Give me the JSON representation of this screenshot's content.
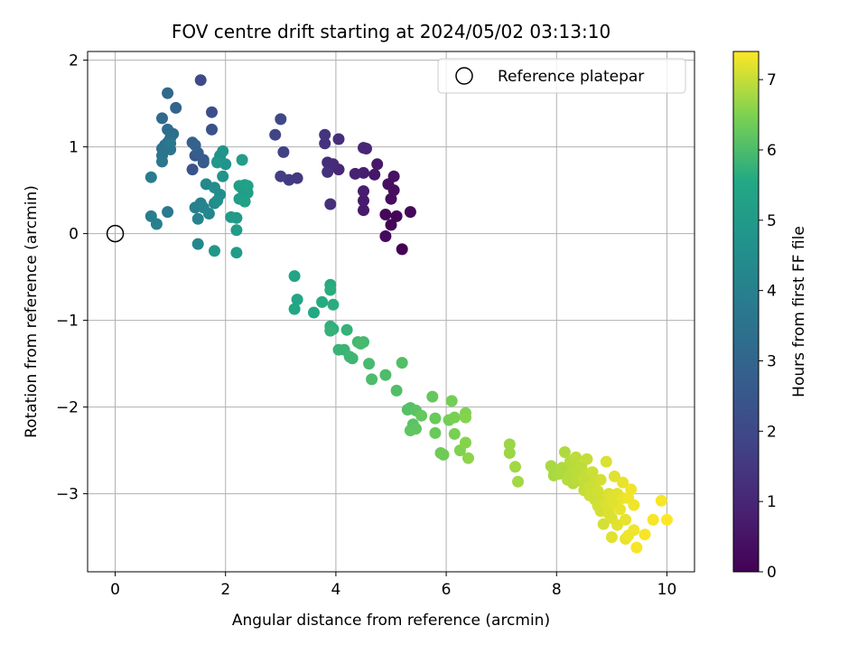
{
  "chart_data": {
    "type": "scatter",
    "title": "FOV centre drift starting at 2024/05/02 03:13:10",
    "xlabel": "Angular distance from reference (arcmin)",
    "ylabel": "Rotation from reference (arcmin)",
    "xlim": [
      -0.5,
      10.5
    ],
    "ylim": [
      -3.9,
      2.1
    ],
    "xticks": [
      0,
      2,
      4,
      6,
      8,
      10
    ],
    "yticks": [
      -3,
      -2,
      -1,
      0,
      1,
      2
    ],
    "grid": true,
    "legend": {
      "placement": "top-right",
      "entries": [
        {
          "label": "Reference platepar",
          "marker": "open-circle"
        }
      ]
    },
    "reference_point": {
      "x": 0,
      "y": 0
    },
    "colorbar": {
      "label": "Hours from first FF file",
      "colormap": "viridis",
      "range": [
        0,
        7.4
      ],
      "ticks": [
        0,
        1,
        2,
        3,
        4,
        5,
        6,
        7
      ]
    },
    "points": [
      [
        5.2,
        -0.18,
        0.0
      ],
      [
        5.0,
        0.1,
        0.05
      ],
      [
        5.1,
        0.2,
        0.1
      ],
      [
        4.9,
        0.22,
        0.15
      ],
      [
        5.35,
        0.25,
        0.2
      ],
      [
        4.9,
        -0.03,
        0.25
      ],
      [
        5.0,
        0.4,
        0.3
      ],
      [
        5.05,
        0.5,
        0.35
      ],
      [
        4.95,
        0.57,
        0.4
      ],
      [
        5.05,
        0.66,
        0.45
      ],
      [
        4.7,
        0.68,
        0.55
      ],
      [
        4.75,
        0.8,
        0.6
      ],
      [
        4.5,
        0.27,
        0.65
      ],
      [
        4.5,
        0.38,
        0.7
      ],
      [
        4.5,
        0.49,
        0.75
      ],
      [
        4.5,
        0.7,
        0.8
      ],
      [
        4.35,
        0.69,
        0.9
      ],
      [
        4.55,
        0.98,
        0.95
      ],
      [
        4.5,
        0.99,
        1.0
      ],
      [
        4.05,
        0.74,
        1.05
      ],
      [
        3.95,
        0.8,
        1.1
      ],
      [
        3.85,
        0.82,
        1.15
      ],
      [
        4.05,
        1.09,
        1.2
      ],
      [
        3.9,
        0.34,
        1.25
      ],
      [
        3.85,
        0.71,
        1.3
      ],
      [
        3.8,
        1.04,
        1.35
      ],
      [
        3.8,
        1.14,
        1.4
      ],
      [
        3.3,
        0.64,
        1.5
      ],
      [
        3.15,
        0.62,
        1.6
      ],
      [
        3.0,
        0.66,
        1.7
      ],
      [
        3.05,
        0.94,
        1.8
      ],
      [
        2.9,
        1.14,
        1.9
      ],
      [
        3.0,
        1.32,
        2.0
      ],
      [
        1.55,
        1.77,
        2.1
      ],
      [
        1.75,
        1.4,
        2.2
      ],
      [
        1.75,
        1.2,
        2.3
      ],
      [
        1.4,
        0.74,
        2.4
      ],
      [
        1.45,
        0.9,
        2.5
      ],
      [
        1.6,
        0.82,
        2.6
      ],
      [
        1.6,
        0.85,
        2.7
      ],
      [
        1.5,
        0.93,
        2.75
      ],
      [
        1.4,
        1.05,
        2.8
      ],
      [
        1.45,
        1.02,
        2.9
      ],
      [
        1.1,
        1.45,
        3.0
      ],
      [
        0.95,
        1.62,
        3.1
      ],
      [
        0.85,
        1.33,
        3.2
      ],
      [
        0.95,
        1.2,
        3.25
      ],
      [
        1.05,
        1.15,
        3.3
      ],
      [
        1.0,
        1.1,
        3.35
      ],
      [
        0.95,
        1.05,
        3.4
      ],
      [
        0.9,
        1.02,
        3.45
      ],
      [
        0.85,
        0.98,
        3.5
      ],
      [
        1.0,
        0.97,
        3.55
      ],
      [
        0.85,
        0.9,
        3.6
      ],
      [
        0.85,
        0.83,
        3.65
      ],
      [
        1.0,
        1.04,
        3.7
      ],
      [
        0.95,
        0.25,
        3.75
      ],
      [
        0.65,
        0.65,
        3.85
      ],
      [
        0.65,
        0.2,
        3.9
      ],
      [
        0.75,
        0.11,
        3.95
      ],
      [
        1.45,
        0.3,
        4.0
      ],
      [
        1.55,
        0.35,
        4.05
      ],
      [
        1.5,
        0.17,
        4.1
      ],
      [
        1.6,
        0.3,
        4.15
      ],
      [
        1.7,
        0.23,
        4.2
      ],
      [
        1.5,
        -0.12,
        4.25
      ],
      [
        1.65,
        0.57,
        4.3
      ],
      [
        1.8,
        0.35,
        4.4
      ],
      [
        1.8,
        0.53,
        4.45
      ],
      [
        1.9,
        0.45,
        4.5
      ],
      [
        1.85,
        0.38,
        4.55
      ],
      [
        1.85,
        0.83,
        4.6
      ],
      [
        1.9,
        0.9,
        4.65
      ],
      [
        1.95,
        0.66,
        4.7
      ],
      [
        2.0,
        0.8,
        4.75
      ],
      [
        1.95,
        0.95,
        4.8
      ],
      [
        1.8,
        -0.2,
        4.85
      ],
      [
        1.85,
        0.82,
        4.9
      ],
      [
        2.1,
        0.19,
        5.0
      ],
      [
        2.2,
        0.18,
        5.0
      ],
      [
        2.2,
        0.04,
        5.05
      ],
      [
        2.2,
        -0.22,
        5.05
      ],
      [
        2.25,
        0.4,
        5.1
      ],
      [
        2.3,
        0.85,
        5.1
      ],
      [
        2.25,
        0.55,
        5.15
      ],
      [
        2.3,
        0.52,
        5.15
      ],
      [
        2.35,
        0.56,
        5.2
      ],
      [
        2.4,
        0.47,
        5.2
      ],
      [
        2.35,
        0.37,
        5.25
      ],
      [
        2.4,
        0.55,
        5.25
      ],
      [
        3.25,
        -0.49,
        5.4
      ],
      [
        3.3,
        -0.76,
        5.45
      ],
      [
        3.25,
        -0.87,
        5.5
      ],
      [
        3.6,
        -0.91,
        5.55
      ],
      [
        3.75,
        -0.79,
        5.6
      ],
      [
        3.9,
        -0.59,
        5.6
      ],
      [
        3.9,
        -0.65,
        5.65
      ],
      [
        3.95,
        -0.82,
        5.65
      ],
      [
        3.9,
        -1.07,
        5.7
      ],
      [
        3.95,
        -1.1,
        5.7
      ],
      [
        3.9,
        -1.12,
        5.75
      ],
      [
        4.2,
        -1.11,
        5.75
      ],
      [
        4.15,
        -1.34,
        5.8
      ],
      [
        4.05,
        -1.34,
        5.8
      ],
      [
        4.25,
        -1.42,
        5.85
      ],
      [
        4.3,
        -1.44,
        5.85
      ],
      [
        4.4,
        -1.25,
        5.9
      ],
      [
        4.5,
        -1.25,
        5.9
      ],
      [
        4.45,
        -1.27,
        5.95
      ],
      [
        4.6,
        -1.5,
        5.95
      ],
      [
        4.65,
        -1.68,
        6.0
      ],
      [
        4.9,
        -1.63,
        6.0
      ],
      [
        5.1,
        -1.81,
        6.05
      ],
      [
        5.2,
        -1.49,
        6.05
      ],
      [
        5.35,
        -2.01,
        6.1
      ],
      [
        5.3,
        -2.03,
        6.1
      ],
      [
        5.45,
        -2.04,
        6.15
      ],
      [
        5.4,
        -2.2,
        6.15
      ],
      [
        5.35,
        -2.27,
        6.2
      ],
      [
        5.45,
        -2.25,
        6.2
      ],
      [
        5.55,
        -2.1,
        6.25
      ],
      [
        5.75,
        -1.88,
        6.25
      ],
      [
        5.8,
        -2.13,
        6.3
      ],
      [
        5.8,
        -2.3,
        6.3
      ],
      [
        5.9,
        -2.53,
        6.35
      ],
      [
        5.95,
        -2.55,
        6.35
      ],
      [
        6.05,
        -2.15,
        6.4
      ],
      [
        6.1,
        -1.93,
        6.4
      ],
      [
        6.15,
        -2.12,
        6.45
      ],
      [
        6.15,
        -2.31,
        6.45
      ],
      [
        6.25,
        -2.5,
        6.5
      ],
      [
        6.35,
        -2.07,
        6.5
      ],
      [
        6.35,
        -2.12,
        6.55
      ],
      [
        6.35,
        -2.41,
        6.55
      ],
      [
        6.4,
        -2.59,
        6.6
      ],
      [
        7.15,
        -2.43,
        6.7
      ],
      [
        7.15,
        -2.53,
        6.7
      ],
      [
        7.25,
        -2.69,
        6.75
      ],
      [
        7.3,
        -2.86,
        6.75
      ],
      [
        7.9,
        -2.68,
        6.8
      ],
      [
        7.95,
        -2.72,
        6.8
      ],
      [
        7.95,
        -2.79,
        6.8
      ],
      [
        8.05,
        -2.77,
        6.85
      ],
      [
        8.1,
        -2.7,
        6.85
      ],
      [
        8.15,
        -2.52,
        6.85
      ],
      [
        8.15,
        -2.75,
        6.85
      ],
      [
        8.2,
        -2.84,
        6.9
      ],
      [
        8.25,
        -2.78,
        6.9
      ],
      [
        8.25,
        -2.62,
        6.9
      ],
      [
        8.3,
        -2.68,
        6.9
      ],
      [
        8.3,
        -2.88,
        6.9
      ],
      [
        8.35,
        -2.58,
        6.95
      ],
      [
        8.35,
        -2.74,
        6.95
      ],
      [
        8.4,
        -2.78,
        6.95
      ],
      [
        8.4,
        -2.85,
        6.95
      ],
      [
        8.45,
        -2.69,
        6.95
      ],
      [
        8.5,
        -2.82,
        7.0
      ],
      [
        8.5,
        -2.96,
        7.0
      ],
      [
        8.55,
        -2.77,
        7.0
      ],
      [
        8.55,
        -2.6,
        7.0
      ],
      [
        8.55,
        -2.89,
        7.0
      ],
      [
        8.6,
        -3.02,
        7.05
      ],
      [
        8.6,
        -2.92,
        7.05
      ],
      [
        8.65,
        -2.75,
        7.05
      ],
      [
        8.7,
        -2.86,
        7.05
      ],
      [
        8.7,
        -3.07,
        7.05
      ],
      [
        8.75,
        -3.14,
        7.1
      ],
      [
        8.75,
        -2.97,
        7.1
      ],
      [
        8.8,
        -2.84,
        7.1
      ],
      [
        8.8,
        -3.2,
        7.1
      ],
      [
        8.85,
        -3.35,
        7.1
      ],
      [
        8.85,
        -3.05,
        7.1
      ],
      [
        8.9,
        -2.63,
        7.15
      ],
      [
        8.9,
        -3.12,
        7.15
      ],
      [
        8.95,
        -3.0,
        7.15
      ],
      [
        8.95,
        -3.23,
        7.15
      ],
      [
        9.0,
        -3.28,
        7.15
      ],
      [
        9.0,
        -3.5,
        7.2
      ],
      [
        9.0,
        -3.05,
        7.2
      ],
      [
        9.05,
        -3.12,
        7.2
      ],
      [
        9.05,
        -2.8,
        7.2
      ],
      [
        9.1,
        -3.36,
        7.2
      ],
      [
        9.1,
        -3.0,
        7.2
      ],
      [
        9.15,
        -3.18,
        7.25
      ],
      [
        9.2,
        -3.05,
        7.25
      ],
      [
        9.2,
        -2.87,
        7.25
      ],
      [
        9.25,
        -3.52,
        7.25
      ],
      [
        9.25,
        -3.3,
        7.25
      ],
      [
        9.3,
        -3.48,
        7.3
      ],
      [
        9.3,
        -3.05,
        7.3
      ],
      [
        9.35,
        -2.95,
        7.3
      ],
      [
        9.4,
        -3.42,
        7.3
      ],
      [
        9.4,
        -3.13,
        7.3
      ],
      [
        9.45,
        -3.62,
        7.35
      ],
      [
        9.6,
        -3.47,
        7.35
      ],
      [
        9.75,
        -3.3,
        7.35
      ],
      [
        9.9,
        -3.08,
        7.35
      ],
      [
        10.0,
        -3.3,
        7.4
      ]
    ]
  }
}
